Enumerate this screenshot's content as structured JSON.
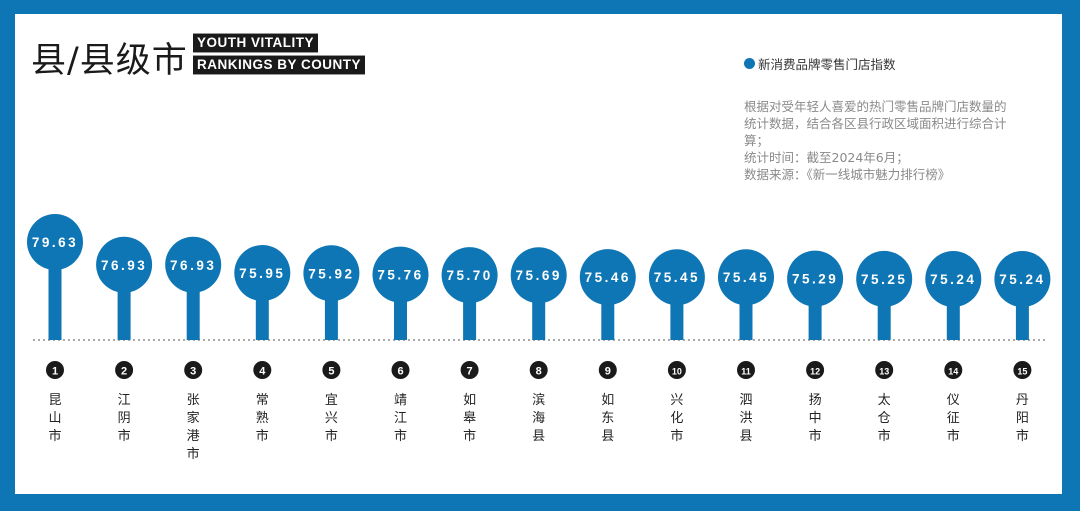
{
  "header": {
    "title": "县/县级市",
    "tag_line1": "YOUTH VITALITY",
    "tag_line2": "RANKINGS BY COUNTY"
  },
  "legend": {
    "label": "新消费品牌零售门店指数",
    "color": "#0e76b5"
  },
  "notes": [
    "根据对受年轻人喜爱的热门零售品牌门店数量的",
    "统计数据，结合各区县行政区域面积进行综合计",
    "算；",
    "统计时间：截至2024年6月；",
    "数据来源：《新一线城市魅力排行榜》"
  ],
  "colors": {
    "accent": "#0e76b5",
    "rank_badge": "#1a1a1a",
    "background": "#ffffff"
  },
  "chart_data": {
    "type": "bar",
    "style": "lollipop",
    "categories": [
      "昆山市",
      "江阴市",
      "张家港市",
      "常熟市",
      "宜兴市",
      "靖江市",
      "如皋市",
      "滨海县",
      "如东县",
      "兴化市",
      "泗洪县",
      "扬中市",
      "太仓市",
      "仪征市",
      "丹阳市"
    ],
    "ranks": [
      "1",
      "2",
      "3",
      "4",
      "5",
      "6",
      "7",
      "8",
      "9",
      "10",
      "11",
      "12",
      "13",
      "14",
      "15"
    ],
    "values": [
      79.63,
      76.93,
      76.93,
      75.95,
      75.92,
      75.76,
      75.7,
      75.69,
      75.46,
      75.45,
      75.45,
      75.29,
      75.25,
      75.24,
      75.24
    ],
    "labels": [
      "79.63",
      "76.93",
      "76.93",
      "75.95",
      "75.92",
      "75.76",
      "75.70",
      "75.69",
      "75.46",
      "75.45",
      "75.45",
      "75.29",
      "75.25",
      "75.24",
      "75.24"
    ],
    "series": [
      {
        "name": "新消费品牌零售门店指数",
        "values": [
          79.63,
          76.93,
          76.93,
          75.95,
          75.92,
          75.76,
          75.7,
          75.69,
          75.46,
          75.45,
          75.45,
          75.29,
          75.25,
          75.24,
          75.24
        ]
      }
    ],
    "title": "县/县级市",
    "grid": false,
    "legend_position": "top-right"
  }
}
